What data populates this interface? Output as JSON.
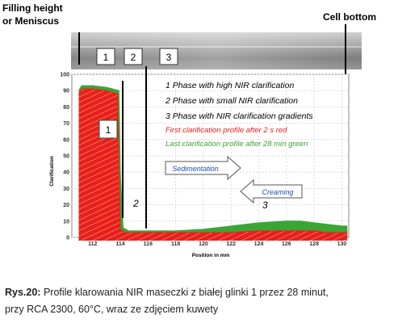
{
  "labels": {
    "filling_height": "Filling height",
    "or_meniscus": "or Meniscus",
    "cell_bottom": "Cell bottom"
  },
  "phase_boxes": [
    "1",
    "2",
    "3"
  ],
  "caption": {
    "bold": "Rys.20:",
    "line1_rest": " Profile klarowania NIR maseczki z białej glinki 1 przez 28 minut,",
    "line2": "przy RCA 2300, 60°C, wraz ze zdjęciem kuwety"
  },
  "chart_data": {
    "type": "area",
    "xlabel": "Position in mm",
    "ylabel": "Clarification",
    "xlim": [
      110.5,
      130.5
    ],
    "ylim": [
      0,
      100
    ],
    "x_ticks": [
      112,
      114,
      116,
      118,
      120,
      122,
      124,
      126,
      128,
      130
    ],
    "y_ticks": [
      0,
      10,
      20,
      30,
      40,
      50,
      60,
      70,
      80,
      90,
      100
    ],
    "legend_lines": [
      {
        "text": "1 Phase with high NIR clarification",
        "color": "#000000"
      },
      {
        "text": "2 Phase with small NIR clarification",
        "color": "#000000"
      },
      {
        "text": "3 Phase with NIR clarification gradients",
        "color": "#000000"
      },
      {
        "text": "First clarification profile after 2 s red",
        "color": "#e8201a"
      },
      {
        "text": "Last clarification profile after 28 min green",
        "color": "#3aa535"
      }
    ],
    "annotations": {
      "sedimentation": "Sedimentation",
      "creaming": "Creaming",
      "phase1": "1",
      "phase2": "2",
      "phase3": "3"
    },
    "series": [
      {
        "name": "First clarification profile after 2 s",
        "color": "#e8201a",
        "x": [
          111.0,
          111.2,
          112,
          113,
          113.8,
          113.9,
          114.0,
          114.3,
          116,
          118,
          120,
          122,
          124,
          126,
          127,
          128,
          129,
          130,
          130.4
        ],
        "y": [
          88,
          91,
          91,
          90,
          88,
          40,
          5,
          3,
          3,
          3,
          3,
          3,
          4,
          4,
          4,
          4,
          3,
          3,
          3
        ]
      },
      {
        "name": "Last clarification profile after 28 min",
        "color": "#3aa535",
        "x": [
          111.0,
          111.2,
          112,
          113,
          113.9,
          114.0,
          114.2,
          114.6,
          116,
          118,
          120,
          122,
          124,
          126,
          127,
          128,
          129,
          130,
          130.4
        ],
        "y": [
          90,
          93,
          93,
          92,
          90,
          40,
          6,
          4,
          4,
          4,
          5,
          7,
          9,
          10,
          10,
          9,
          8,
          7,
          7
        ]
      }
    ]
  }
}
